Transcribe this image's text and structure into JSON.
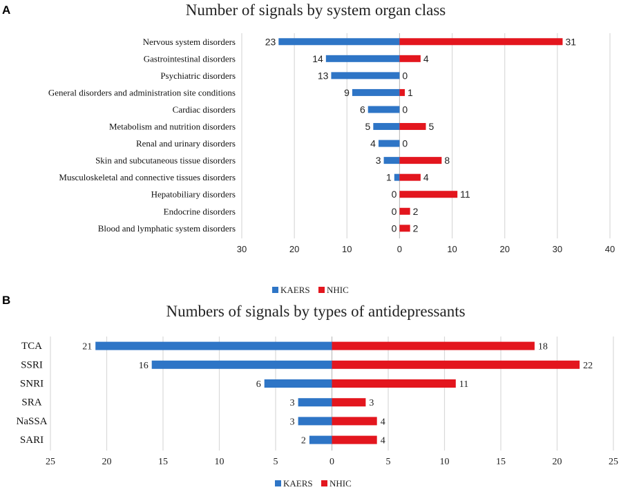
{
  "chart_data": [
    {
      "type": "bar",
      "orientation": "horizontal-diverging",
      "panel_label": "A",
      "title": "Number of signals by system organ class",
      "categories": [
        "Nervous system disorders",
        "Gastrointestinal disorders",
        "Psychiatric disorders",
        "General disorders and administration site conditions",
        "Cardiac disorders",
        "Metabolism and nutrition disorders",
        "Renal and urinary disorders",
        "Skin and subcutaneous tissue disorders",
        "Musculoskeletal and connective tissues disorders",
        "Hepatobiliary disorders",
        "Endocrine disorders",
        "Blood and lymphatic system disorders"
      ],
      "series": [
        {
          "name": "KAERS",
          "color": "#2e75c6",
          "direction": "left",
          "values": [
            23,
            14,
            13,
            9,
            6,
            5,
            4,
            3,
            1,
            0,
            0,
            0
          ]
        },
        {
          "name": "NHIC",
          "color": "#e3161e",
          "direction": "right",
          "values": [
            31,
            4,
            0,
            1,
            0,
            5,
            0,
            8,
            4,
            11,
            2,
            2
          ]
        }
      ],
      "xlim": [
        -30,
        40
      ],
      "ticks": [
        -30,
        -20,
        -10,
        0,
        10,
        20,
        30,
        40
      ],
      "tick_labels": [
        "30",
        "20",
        "10",
        "0",
        "10",
        "20",
        "30",
        "40"
      ],
      "legend": "bottom-center",
      "grid": true
    },
    {
      "type": "bar",
      "orientation": "horizontal-diverging",
      "panel_label": "B",
      "title": "Numbers of signals by types of antidepressants",
      "categories": [
        "TCA",
        "SSRI",
        "SNRI",
        "SRA",
        "NaSSA",
        "SARI"
      ],
      "series": [
        {
          "name": "KAERS",
          "color": "#2e75c6",
          "direction": "left",
          "values": [
            21,
            16,
            6,
            3,
            3,
            2
          ]
        },
        {
          "name": "NHIC",
          "color": "#e3161e",
          "direction": "right",
          "values": [
            18,
            22,
            11,
            3,
            4,
            4
          ]
        }
      ],
      "xlim": [
        -25,
        25
      ],
      "ticks": [
        -25,
        -20,
        -15,
        -10,
        -5,
        0,
        5,
        10,
        15,
        20,
        25
      ],
      "tick_labels": [
        "25",
        "20",
        "15",
        "10",
        "5",
        "0",
        "5",
        "10",
        "15",
        "20",
        "25"
      ],
      "legend": "bottom-center",
      "grid": true
    }
  ]
}
